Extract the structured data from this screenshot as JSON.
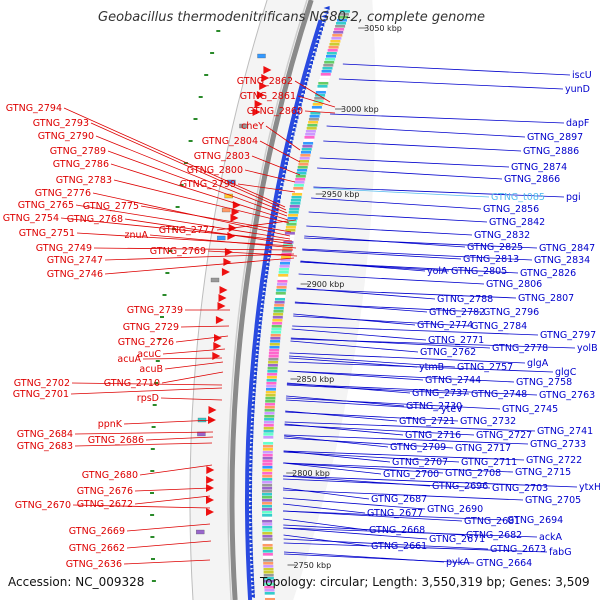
{
  "title": "Geobacillus thermodenitrificans NG80-2, complete genome",
  "footer": {
    "accession": "Accession: NC_009328",
    "summary": "Topology: circular; Length: 3,550,319 bp; Genes: 3,509"
  },
  "kbp_marks": [
    {
      "label": "3050 kbp",
      "pos": 0
    },
    {
      "label": "3000 kbp",
      "pos": 1
    },
    {
      "label": "2950 kbp",
      "pos": 2
    },
    {
      "label": "2900 kbp",
      "pos": 3
    },
    {
      "label": "2850 kbp",
      "pos": 4
    },
    {
      "label": "2800 kbp",
      "pos": 5
    },
    {
      "label": "2750 kbp",
      "pos": 6
    }
  ],
  "colors": {
    "left_labels": "#dd0000",
    "right_labels": "#0000cc",
    "highlight": "#55bbee"
  },
  "left_genes": [
    "GTNG_2862",
    "GTNG_2861",
    "GTNG_2860",
    "GTNG_2794",
    "GTNG_2793",
    "GTNG_2790",
    "GTNG_2789",
    "GTNG_2786",
    "GTNG_2783",
    "GTNG_2776",
    "GTNG_2765",
    "GTNG_2775",
    "GTNG_2754",
    "GTNG_2768",
    "GTNG_2751",
    "GTNG_2749",
    "GTNG_2747",
    "GTNG_2746",
    "cheY",
    "GTNG_2804",
    "GTNG_2803",
    "GTNG_2800",
    "GTNG_2799",
    "GTNG_2777",
    "znuA",
    "GTNG_2769",
    "GTNG_2739",
    "GTNG_2729",
    "GTNG_2726",
    "acuC",
    "acuA",
    "acuB",
    "GTNG_2710",
    "GTNG_2702",
    "GTNG_2701",
    "rpsD",
    "ppnK",
    "GTNG_2684",
    "GTNG_2686",
    "GTNG_2683",
    "GTNG_2680",
    "GTNG_2676",
    "GTNG_2670",
    "GTNG_2672",
    "GTNG_2669",
    "GTNG_2662",
    "GTNG_2636"
  ],
  "right_genes": [
    "iscU",
    "yunD",
    "dapF",
    "GTNG_2897",
    "GTNG_2886",
    "GTNG_2874",
    "GTNG_2866",
    "pgi",
    "GTNG_t085",
    "GTNG_2856",
    "GTNG_2842",
    "GTNG_2832",
    "GTNG_2825",
    "GTNG_2847",
    "GTNG_2813",
    "GTNG_2834",
    "yolA",
    "GTNG_2805",
    "GTNG_2826",
    "GTNG_2806",
    "GTNG_2807",
    "GTNG_2788",
    "GTNG_2782",
    "GTNG_2796",
    "GTNG_2774",
    "GTNG_2784",
    "GTNG_2797",
    "GTNG_2771",
    "GTNG_2778",
    "yolB",
    "GTNG_2762",
    "glgA",
    "ytmB",
    "GTNG_2757",
    "glgC",
    "GTNG_2744",
    "GTNG_2758",
    "GTNG_2737",
    "GTNG_2748",
    "GTNG_2763",
    "GTNG_2730",
    "yteV",
    "GTNG_2745",
    "GTNG_2721",
    "GTNG_2732",
    "GTNG_2716",
    "GTNG_2727",
    "GTNG_2741",
    "GTNG_2709",
    "GTNG_2717",
    "GTNG_2733",
    "GTNG_2707",
    "GTNG_2711",
    "GTNG_2722",
    "GTNG_2700",
    "GTNG_2708",
    "GTNG_2715",
    "ytxH",
    "GTNG_2696",
    "GTNG_2703",
    "GTNG_2687",
    "GTNG_2705",
    "GTNG_2677",
    "GTNG_2690",
    "GTNG_2681",
    "GTNG_2694",
    "GTNG_2668",
    "GTNG_2682",
    "ackA",
    "GTNG_2671",
    "GTNG_2673",
    "fabG",
    "GTNG_2661",
    "pykA",
    "GTNG_2664"
  ]
}
